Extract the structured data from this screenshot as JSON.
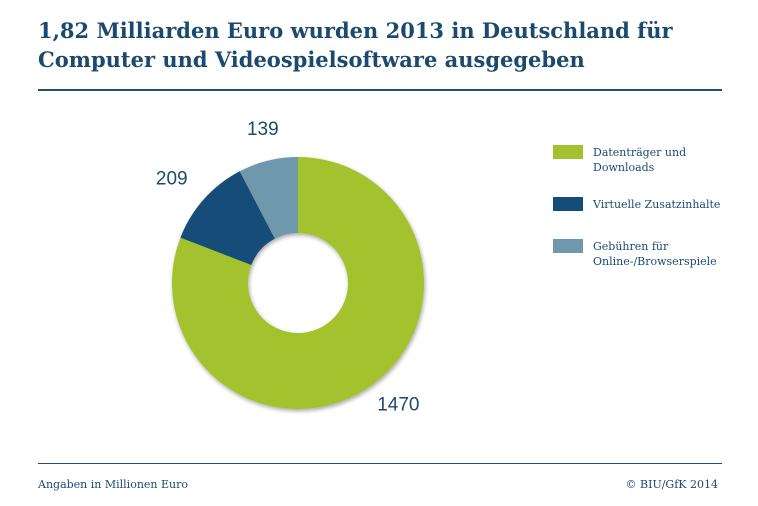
{
  "title": "1,82 Milliarden Euro wurden 2013 in Deutschland für Computer und Videospielsoftware ausgegeben",
  "chart_data": {
    "type": "pie",
    "variant": "donut",
    "title": "1,82 Milliarden Euro wurden 2013 in Deutschland für Computer und Videospielsoftware ausgegeben",
    "categories": [
      "Datenträger und Downloads",
      "Virtuelle Zusatzinhalte",
      "Gebühren für Online-/Browserspiele"
    ],
    "values": [
      1470,
      209,
      139
    ],
    "data_labels": [
      "1470",
      "209",
      "139"
    ],
    "colors": [
      "#a4c12f",
      "#134d78",
      "#6f98ad"
    ],
    "legend_position": "right"
  },
  "legend": {
    "items": [
      {
        "label": "Datenträger und Downloads",
        "color": "#a4c12f"
      },
      {
        "label": "Virtuelle Zusatzinhalte",
        "color": "#134d78"
      },
      {
        "label": "Gebühren für Online-/Browserspiele",
        "color": "#6f98ad"
      }
    ]
  },
  "footer": {
    "note": "Angaben in Millionen Euro",
    "source": "© BIU/GfK 2014"
  }
}
